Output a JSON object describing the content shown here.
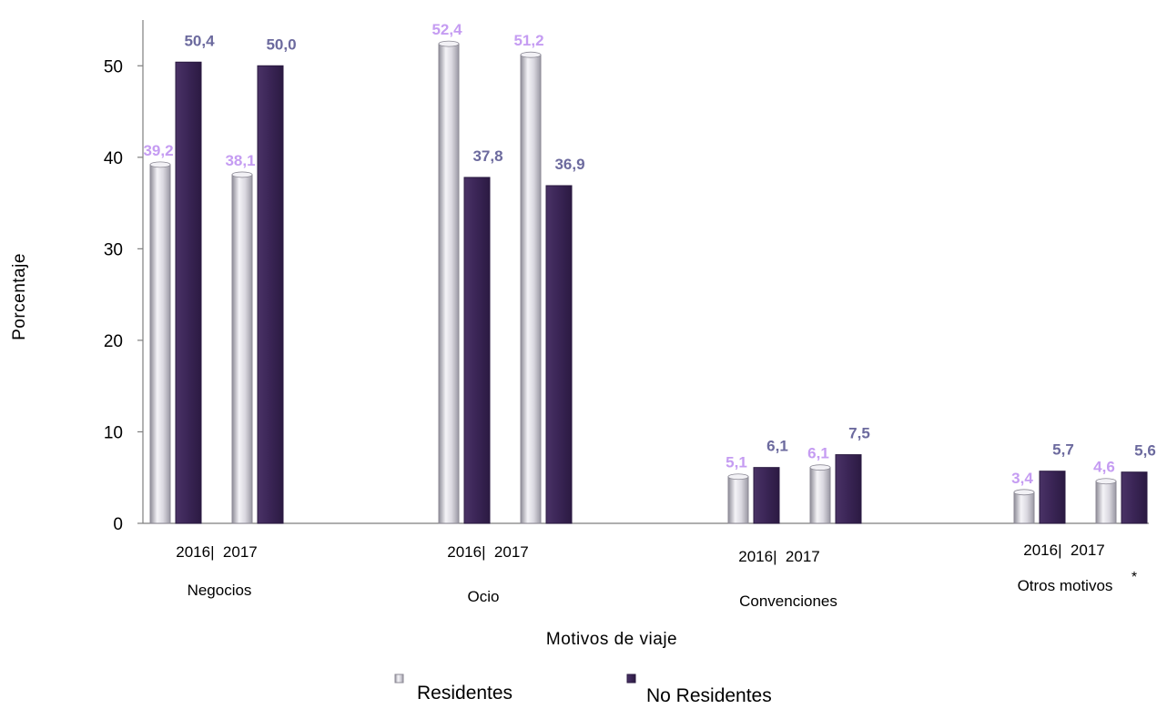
{
  "colors": {
    "residentes_fill": "#d8d6df",
    "residentes_stroke": "#8c8a95",
    "no_residentes_fill": "#3f2a5c",
    "no_residentes_stroke": "#2a1a40",
    "residentes_label": "#c59cf2",
    "no_residentes_label": "#6c6a9e",
    "axis": "#7f7f7f",
    "text": "#000000"
  },
  "chart_data": {
    "type": "bar",
    "xlabel": "Motivos de viaje",
    "ylabel": "Porcentaje",
    "ylim": [
      0,
      55
    ],
    "yticks": [
      0,
      10,
      20,
      30,
      40,
      50
    ],
    "grid": false,
    "legend_placement": "bottom-center",
    "groups": [
      {
        "category": "Negocios",
        "asterisk": "",
        "years": [
          "2016",
          "2017"
        ],
        "year_label": "2016|  2017",
        "values": {
          "Residentes": [
            39.2,
            38.1
          ],
          "No Residentes": [
            50.4,
            50.0
          ]
        },
        "labels": {
          "Residentes": [
            "39,2",
            "38,1"
          ],
          "No Residentes": [
            "50,4",
            "50,0"
          ]
        }
      },
      {
        "category": "Ocio",
        "asterisk": "",
        "years": [
          "2016",
          "2017"
        ],
        "year_label": "2016|  2017",
        "values": {
          "Residentes": [
            52.4,
            51.2
          ],
          "No Residentes": [
            37.8,
            36.9
          ]
        },
        "labels": {
          "Residentes": [
            "52,4",
            "51,2"
          ],
          "No Residentes": [
            "37,8",
            "36,9"
          ]
        }
      },
      {
        "category": "Convenciones",
        "asterisk": "",
        "years": [
          "2016",
          "2017"
        ],
        "year_label": "2016|  2017",
        "values": {
          "Residentes": [
            5.1,
            6.1
          ],
          "No Residentes": [
            6.1,
            7.5
          ]
        },
        "labels": {
          "Residentes": [
            "5,1",
            "6,1"
          ],
          "No Residentes": [
            "6,1",
            "7,5"
          ]
        }
      },
      {
        "category": "Otros motivos",
        "asterisk": "*",
        "years": [
          "2016",
          "2017"
        ],
        "year_label": "2016|  2017",
        "values": {
          "Residentes": [
            3.4,
            4.6
          ],
          "No Residentes": [
            5.7,
            5.6
          ]
        },
        "labels": {
          "Residentes": [
            "3,4",
            "4,6"
          ],
          "No Residentes": [
            "5,7",
            "5,6"
          ]
        }
      }
    ],
    "series": [
      {
        "name": "Residentes"
      },
      {
        "name": "No Residentes"
      }
    ]
  }
}
